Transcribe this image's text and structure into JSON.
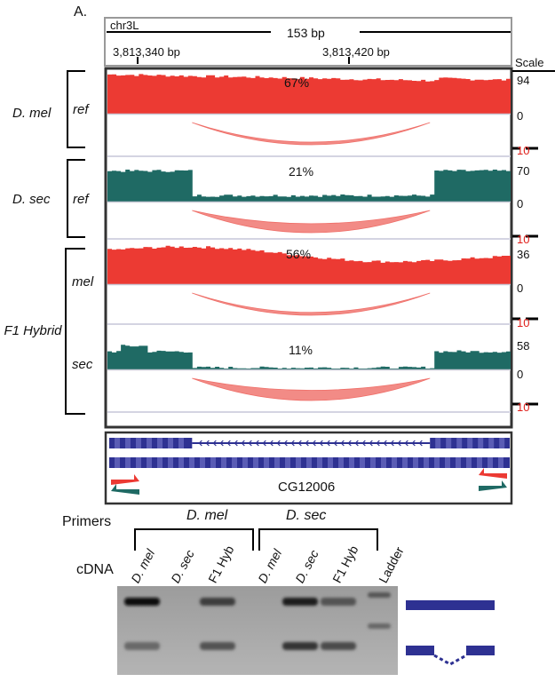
{
  "panel_label": "A.",
  "ruler": {
    "chrom": "chr3L",
    "span": "153 bp",
    "pos_left": "3,813,340 bp",
    "pos_right": "3,813,420 bp",
    "scale_label": "Scale"
  },
  "groups": [
    {
      "label": "D. mel"
    },
    {
      "label": "D. sec"
    },
    {
      "label": "F1 Hybrid"
    }
  ],
  "tracks": [
    {
      "label": "ref",
      "percent": "67%",
      "scale_max": "94",
      "scale_min": "0",
      "arc_scale": "10",
      "color": "#ec3a33",
      "arc_width": 0.14
    },
    {
      "label": "ref",
      "percent": "21%",
      "scale_max": "70",
      "scale_min": "0",
      "arc_scale": "10",
      "color": "#1f6a64",
      "arc_width": 0.65
    },
    {
      "label": "mel",
      "percent": "56%",
      "scale_max": "36",
      "scale_min": "0",
      "arc_scale": "10",
      "color": "#ec3a33",
      "arc_width": 0.16
    },
    {
      "label": "sec",
      "percent": "11%",
      "scale_max": "58",
      "scale_min": "0",
      "arc_scale": "10",
      "color": "#1f6a64",
      "arc_width": 0.75
    }
  ],
  "gene": {
    "name": "CG12006",
    "color": "#2e3192"
  },
  "gel": {
    "primers_label": "Primers",
    "cdna_label": "cDNA",
    "primer_groups": [
      "D. mel",
      "D. sec"
    ],
    "lanes": [
      "D. mel",
      "D. sec",
      "F1 Hyb",
      "D. mel",
      "D. sec",
      "F1 Hyb",
      "Ladder"
    ],
    "band_upper": [
      0.95,
      0.0,
      0.6,
      0.0,
      0.8,
      0.45
    ],
    "band_lower": [
      0.3,
      0.0,
      0.45,
      0.0,
      0.65,
      0.5
    ],
    "legend_color": "#2e3192"
  }
}
